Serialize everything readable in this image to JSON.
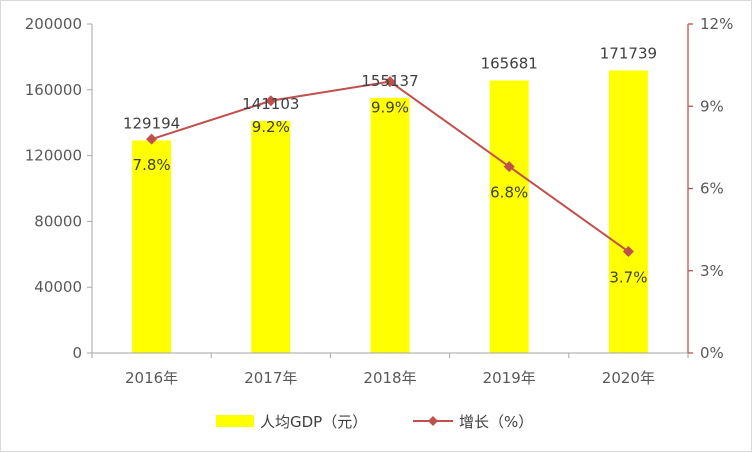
{
  "chart_data": {
    "type": "bar",
    "categories": [
      "2016年",
      "2017年",
      "2018年",
      "2019年",
      "2020年"
    ],
    "series": [
      {
        "name": "人均GDP（元）",
        "type": "bar",
        "axis": "left",
        "values": [
          129194,
          141103,
          155137,
          165681,
          171739
        ],
        "labels": [
          "129194",
          "141103",
          "155137",
          "165681",
          "171739"
        ],
        "color": "#ffff00"
      },
      {
        "name": "增长（%）",
        "type": "line",
        "axis": "right",
        "values": [
          7.8,
          9.2,
          9.9,
          6.8,
          3.7
        ],
        "labels": [
          "7.8%",
          "9.2%",
          "9.9%",
          "6.8%",
          "3.7%"
        ],
        "color": "#c0504d"
      }
    ],
    "y_left": {
      "range": [
        0,
        200000
      ],
      "ticks": [
        0,
        40000,
        80000,
        120000,
        160000,
        200000
      ],
      "tick_labels": [
        "0",
        "40000",
        "80000",
        "120000",
        "160000",
        "200000"
      ]
    },
    "y_right": {
      "range": [
        0,
        12
      ],
      "ticks": [
        0,
        3,
        6,
        9,
        12
      ],
      "tick_labels": [
        "0%",
        "3%",
        "6%",
        "9%",
        "12%"
      ],
      "color": "#c0504d"
    },
    "grid": false,
    "legend_position": "bottom",
    "title": "",
    "xlabel": "",
    "ylabel": ""
  }
}
